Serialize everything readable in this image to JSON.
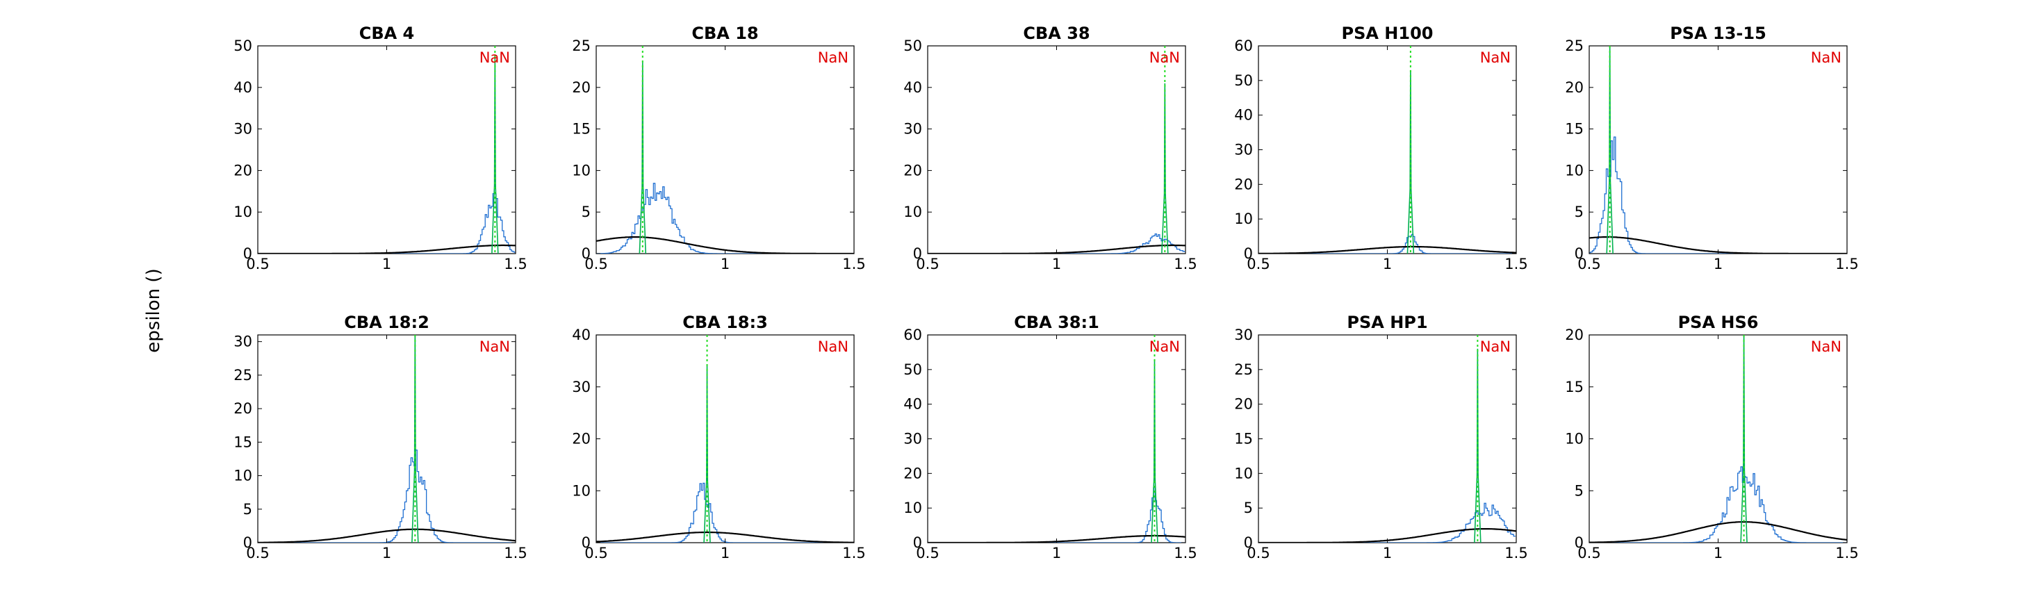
{
  "figure": {
    "ylabel": "epsilon ()",
    "colors": {
      "histogram": "#1f6fd1",
      "posterior": "#00b050",
      "estimate_line": "#22dd22",
      "prior_curve": "#000000",
      "nan_text": "#e00000"
    }
  },
  "chart_data": [
    {
      "type": "line",
      "title": "CBA 4",
      "annotation": "NaN",
      "xlim": [
        0.5,
        1.5
      ],
      "ylim": [
        0,
        50
      ],
      "xticks": [
        "0.5",
        "1",
        "1.5"
      ],
      "yticks": [
        "0",
        "10",
        "20",
        "30",
        "40",
        "50"
      ],
      "estimate": 1.42,
      "peak": 47,
      "hist_center": 1.41,
      "hist_spread": 0.03,
      "hist_peak": 13,
      "prior": {
        "mean": 1.45,
        "sd": 0.2,
        "peak": 2
      }
    },
    {
      "type": "line",
      "title": "CBA 18",
      "annotation": "NaN",
      "xlim": [
        0.5,
        1.5
      ],
      "ylim": [
        0,
        25
      ],
      "xticks": [
        "0.5",
        "1",
        "1.5"
      ],
      "yticks": [
        "0",
        "5",
        "10",
        "15",
        "20",
        "25"
      ],
      "estimate": 0.68,
      "peak": 23,
      "hist_center": 0.73,
      "hist_spread": 0.06,
      "hist_peak": 8,
      "prior": {
        "mean": 0.65,
        "sd": 0.2,
        "peak": 2
      }
    },
    {
      "type": "line",
      "title": "CBA 38",
      "annotation": "NaN",
      "xlim": [
        0.5,
        1.5
      ],
      "ylim": [
        0,
        50
      ],
      "xticks": [
        "0.5",
        "1",
        "1.5"
      ],
      "yticks": [
        "0",
        "10",
        "20",
        "30",
        "40",
        "50"
      ],
      "estimate": 1.42,
      "peak": 41,
      "hist_center": 1.39,
      "hist_spread": 0.05,
      "hist_peak": 4,
      "prior": {
        "mean": 1.45,
        "sd": 0.2,
        "peak": 2
      }
    },
    {
      "type": "line",
      "title": "PSA H100",
      "annotation": "NaN",
      "xlim": [
        0.5,
        1.5
      ],
      "ylim": [
        0,
        60
      ],
      "xticks": [
        "0.5",
        "1",
        "1.5"
      ],
      "yticks": [
        "0",
        "10",
        "20",
        "30",
        "40",
        "50",
        "60"
      ],
      "estimate": 1.09,
      "peak": 53,
      "hist_center": 1.09,
      "hist_spread": 0.02,
      "hist_peak": 5,
      "prior": {
        "mean": 1.1,
        "sd": 0.2,
        "peak": 2
      }
    },
    {
      "type": "line",
      "title": "PSA 13-15",
      "annotation": "NaN",
      "xlim": [
        0.5,
        1.5
      ],
      "ylim": [
        0,
        25
      ],
      "xticks": [
        "0.5",
        "1",
        "1.5"
      ],
      "yticks": [
        "0",
        "5",
        "10",
        "15",
        "20",
        "25"
      ],
      "estimate": 0.58,
      "peak": 25,
      "hist_center": 0.59,
      "hist_spread": 0.03,
      "hist_peak": 12,
      "prior": {
        "mean": 0.57,
        "sd": 0.2,
        "peak": 2
      }
    },
    {
      "type": "line",
      "title": "CBA 18:2",
      "annotation": "NaN",
      "xlim": [
        0.5,
        1.5
      ],
      "ylim": [
        0,
        31
      ],
      "xticks": [
        "0.5",
        "1",
        "1.5"
      ],
      "yticks": [
        "0",
        "5",
        "10",
        "15",
        "20",
        "25",
        "30"
      ],
      "estimate": 1.11,
      "peak": 31,
      "hist_center": 1.11,
      "hist_spread": 0.035,
      "hist_peak": 12,
      "prior": {
        "mean": 1.11,
        "sd": 0.2,
        "peak": 2
      }
    },
    {
      "type": "line",
      "title": "CBA 18:3",
      "annotation": "NaN",
      "xlim": [
        0.5,
        1.5
      ],
      "ylim": [
        0,
        40
      ],
      "xticks": [
        "0.5",
        "1",
        "1.5"
      ],
      "yticks": [
        "0",
        "10",
        "20",
        "30",
        "40"
      ],
      "estimate": 0.93,
      "peak": 34,
      "hist_center": 0.91,
      "hist_spread": 0.03,
      "hist_peak": 10,
      "prior": {
        "mean": 0.93,
        "sd": 0.2,
        "peak": 2
      }
    },
    {
      "type": "line",
      "title": "CBA 38:1",
      "annotation": "NaN",
      "xlim": [
        0.5,
        1.5
      ],
      "ylim": [
        0,
        60
      ],
      "xticks": [
        "0.5",
        "1",
        "1.5"
      ],
      "yticks": [
        "0",
        "10",
        "20",
        "30",
        "40",
        "50",
        "60"
      ],
      "estimate": 1.38,
      "peak": 53,
      "hist_center": 1.38,
      "hist_spread": 0.02,
      "hist_peak": 14,
      "prior": {
        "mean": 1.38,
        "sd": 0.2,
        "peak": 2
      }
    },
    {
      "type": "line",
      "title": "PSA HP1",
      "annotation": "NaN",
      "xlim": [
        0.5,
        1.5
      ],
      "ylim": [
        0,
        30
      ],
      "xticks": [
        "0.5",
        "1",
        "1.5"
      ],
      "yticks": [
        "0",
        "5",
        "10",
        "15",
        "20",
        "25",
        "30"
      ],
      "estimate": 1.35,
      "peak": 28,
      "hist_center": 1.38,
      "hist_spread": 0.06,
      "hist_peak": 5,
      "prior": {
        "mean": 1.38,
        "sd": 0.2,
        "peak": 2
      }
    },
    {
      "type": "line",
      "title": "PSA HS6",
      "annotation": "NaN",
      "xlim": [
        0.5,
        1.5
      ],
      "ylim": [
        0,
        20
      ],
      "xticks": [
        "0.5",
        "1",
        "1.5"
      ],
      "yticks": [
        "0",
        "5",
        "10",
        "15",
        "20"
      ],
      "estimate": 1.1,
      "peak": 20,
      "hist_center": 1.1,
      "hist_spread": 0.06,
      "hist_peak": 7,
      "prior": {
        "mean": 1.1,
        "sd": 0.2,
        "peak": 2
      }
    }
  ]
}
